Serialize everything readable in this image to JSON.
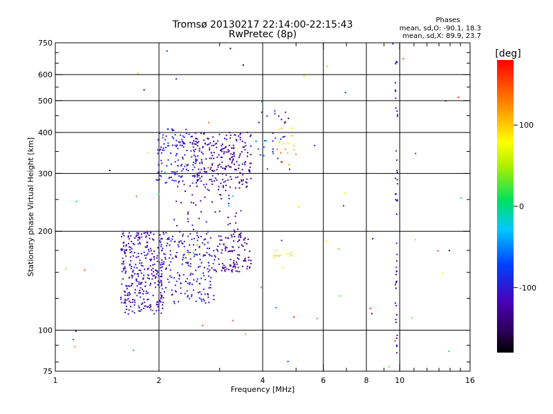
{
  "chart_data": {
    "type": "scatter",
    "title": "Tromsø 20130217 22:14:00-22:15:43",
    "subtitle": "RwPretec (8p)",
    "xlabel": "Frequency [MHz]",
    "ylabel": "Stationary phase Virtual Height [km]",
    "x_scale": "log",
    "y_scale": "log",
    "xlim": [
      1,
      16
    ],
    "ylim": [
      75,
      750
    ],
    "x_ticks": [
      1,
      2,
      4,
      6,
      8,
      10,
      16
    ],
    "x_tick_labels": [
      "1",
      "2",
      "4",
      "6",
      "8",
      "10",
      "16"
    ],
    "y_ticks": [
      75,
      100,
      200,
      300,
      400,
      500,
      600,
      750
    ],
    "y_tick_labels": [
      "75",
      "100",
      "200",
      "300",
      "400",
      "500",
      "600",
      "750"
    ],
    "x_grid": [
      2,
      4,
      6,
      8,
      10
    ],
    "y_grid": [
      100,
      200,
      300,
      400,
      500,
      600
    ],
    "grid": true,
    "info": {
      "heading": "Phases",
      "line1": "mean, sd,O: -90.1, 18.3",
      "line2": "mean, sd,X:  89.9, 23.7"
    },
    "colorbar": {
      "label": "[deg]",
      "range": [
        -180,
        180
      ],
      "ticks": [
        100,
        0,
        -100
      ],
      "tick_labels": [
        "100",
        "0",
        "-100"
      ],
      "colormap": "rainbow"
    },
    "clusters": [
      {
        "xr": [
          1.55,
          2.05
        ],
        "yr": [
          112,
          200
        ],
        "n": 300,
        "phase": -110,
        "spread": 18
      },
      {
        "xr": [
          2.0,
          2.9
        ],
        "yr": [
          120,
          200
        ],
        "n": 220,
        "phase": -105,
        "spread": 20
      },
      {
        "xr": [
          2.9,
          3.7
        ],
        "yr": [
          150,
          200
        ],
        "n": 110,
        "phase": -130,
        "spread": 15
      },
      {
        "xr": [
          1.95,
          2.6
        ],
        "yr": [
          280,
          410
        ],
        "n": 140,
        "phase": -100,
        "spread": 18
      },
      {
        "xr": [
          2.5,
          3.7
        ],
        "yr": [
          270,
          400
        ],
        "n": 230,
        "phase": -125,
        "spread": 18
      },
      {
        "xr": [
          2.2,
          3.5
        ],
        "yr": [
          200,
          290
        ],
        "n": 50,
        "phase": -120,
        "spread": 20
      },
      {
        "xr": [
          3.8,
          4.8
        ],
        "yr": [
          300,
          470
        ],
        "n": 30,
        "phase": -110,
        "spread": 60
      },
      {
        "xr": [
          4.4,
          5.0
        ],
        "yr": [
          310,
          420
        ],
        "n": 16,
        "phase": 110,
        "spread": 25
      },
      {
        "xr": [
          4.3,
          5.0
        ],
        "yr": [
          165,
          175
        ],
        "n": 12,
        "phase": 90,
        "spread": 20
      },
      {
        "xr": [
          9.7,
          9.85
        ],
        "yr": [
          85,
          660
        ],
        "n": 48,
        "phase": -115,
        "spread": 15
      },
      {
        "xr": [
          1.0,
          16.0
        ],
        "yr": [
          75,
          750
        ],
        "n": 70,
        "phase": 0,
        "spread": 180
      }
    ],
    "colors": {
      "background": "#ffffff",
      "axes": "#000000",
      "grid": "#000000"
    }
  }
}
